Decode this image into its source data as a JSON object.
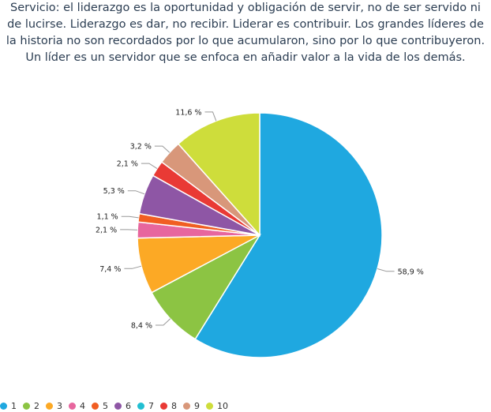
{
  "chart_data": {
    "type": "pie",
    "title": "Servicio: el liderazgo es la oportunidad y obligación de servir, no de ser servido ni de lucirse. Liderazgo es dar, no recibir. Liderar es contribuir. Los grandes líderes de la historia no son recordados por lo que acumularon, sino por lo que contribuyeron. Un líder es un servidor que se enfoca en añadir valor a la vida de los demás.",
    "categories": [
      "1",
      "2",
      "3",
      "4",
      "5",
      "6",
      "7",
      "8",
      "9",
      "10"
    ],
    "values": [
      58.9,
      8.4,
      7.4,
      2.1,
      1.1,
      5.3,
      0,
      2.1,
      3.2,
      11.6
    ],
    "labels": [
      "58,9 %",
      "8,4 %",
      "7,4 %",
      "2,1 %",
      "1,1 %",
      "5,3 %",
      "",
      "2,1 %",
      "3,2 %",
      "11,6 %"
    ],
    "colors": [
      "#1fa8e0",
      "#8cc443",
      "#fca925",
      "#e7669e",
      "#f15e22",
      "#8e56a5",
      "#22bfd2",
      "#e93a35",
      "#d8977a",
      "#cedd3b"
    ],
    "legend_position": "bottom-left"
  }
}
